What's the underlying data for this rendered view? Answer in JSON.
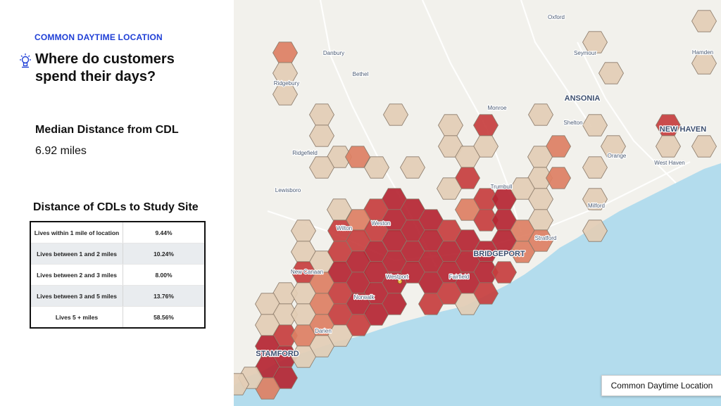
{
  "header": {
    "eyebrow": "COMMON DAYTIME LOCATION",
    "title": "Where do customers spend their days?",
    "icon": "lightbulb-icon"
  },
  "metric": {
    "label": "Median Distance from CDL",
    "value": "6.92 miles"
  },
  "distance_table": {
    "title": "Distance of CDLs to Study Site",
    "rows": [
      {
        "label": "Lives within 1 mile of location",
        "value": "9.44%"
      },
      {
        "label": "Lives between 1 and 2 miles",
        "value": "10.24%"
      },
      {
        "label": "Lives between 2 and 3 miles",
        "value": "8.00%"
      },
      {
        "label": "Lives between 3 and 5 miles",
        "value": "13.76%"
      },
      {
        "label": "Lives 5 + miles",
        "value": "58.56%"
      }
    ]
  },
  "map": {
    "legend_label": "Common Daytime Location",
    "colors": {
      "land": "#f2f1ec",
      "water": "#b3dced",
      "road": "#ffffff",
      "hex_level_0": "#e3cdb5",
      "hex_level_1": "#dd7f63",
      "hex_level_2": "#c73e3e",
      "hex_level_3": "#b52532",
      "hex_stroke": "#8a7a6a",
      "label": "#4a5a72",
      "major_label": "#3d4f6e"
    },
    "places": [
      {
        "name": "Oxford",
        "major": false
      },
      {
        "name": "Danbury",
        "major": false
      },
      {
        "name": "Seymour",
        "major": false
      },
      {
        "name": "Hamden",
        "major": false
      },
      {
        "name": "Bethel",
        "major": false
      },
      {
        "name": "Ridgebury",
        "major": false
      },
      {
        "name": "ANSONIA",
        "major": true
      },
      {
        "name": "Monroe",
        "major": false
      },
      {
        "name": "Shelton",
        "major": false
      },
      {
        "name": "NEW HAVEN",
        "major": true
      },
      {
        "name": "Ridgefield",
        "major": false
      },
      {
        "name": "Orange",
        "major": false
      },
      {
        "name": "West Haven",
        "major": false
      },
      {
        "name": "Trumbull",
        "major": false
      },
      {
        "name": "Lewisboro",
        "major": false
      },
      {
        "name": "Milford",
        "major": false
      },
      {
        "name": "Wilton",
        "major": false
      },
      {
        "name": "Weston",
        "major": false
      },
      {
        "name": "Stratford",
        "major": false
      },
      {
        "name": "BRIDGEPORT",
        "major": true
      },
      {
        "name": "New Canaan",
        "major": false
      },
      {
        "name": "Westport",
        "major": false
      },
      {
        "name": "Fairfield",
        "major": false
      },
      {
        "name": "Norwalk",
        "major": false
      },
      {
        "name": "Darien",
        "major": false
      },
      {
        "name": "STAMFORD",
        "major": true
      }
    ]
  }
}
